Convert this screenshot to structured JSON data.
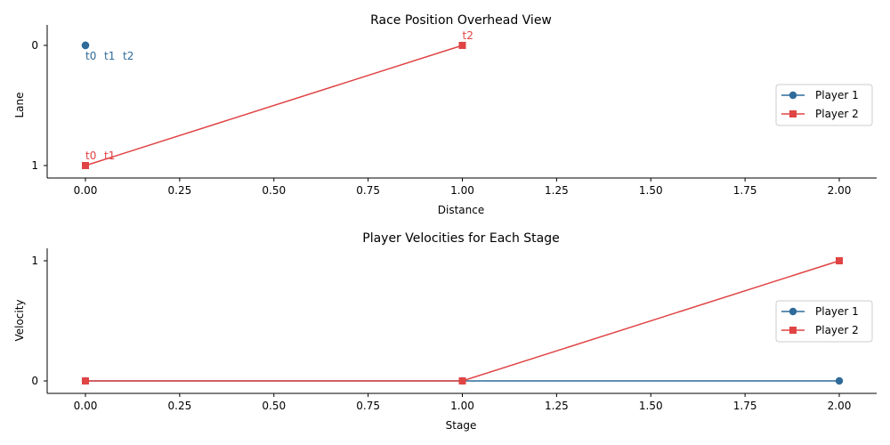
{
  "colors": {
    "player1": "#2f6b9a",
    "player2": "#e04444"
  },
  "chart_data": [
    {
      "type": "line",
      "title": "Race Position Overhead View",
      "xlabel": "Distance",
      "ylabel": "Lane",
      "xlim": [
        -0.1,
        2.1
      ],
      "ylim": [
        1.1,
        -0.1
      ],
      "y_inverted": true,
      "xticks": [
        "0.00",
        "0.25",
        "0.50",
        "0.75",
        "1.00",
        "1.25",
        "1.50",
        "1.75",
        "2.00"
      ],
      "xtick_values": [
        0,
        0.25,
        0.5,
        0.75,
        1.0,
        1.25,
        1.5,
        1.75,
        2.0
      ],
      "yticks": [
        "0",
        "1"
      ],
      "ytick_values": [
        0,
        1
      ],
      "grid": false,
      "legend_position": "center-right",
      "series": [
        {
          "name": "Player 1",
          "marker": "circle",
          "color": "#2f6b9a",
          "x": [
            0,
            0,
            0
          ],
          "y": [
            0,
            0,
            0
          ]
        },
        {
          "name": "Player 2",
          "marker": "square",
          "color": "#e04444",
          "x": [
            0,
            0,
            1
          ],
          "y": [
            1,
            1,
            0
          ]
        }
      ],
      "annotations": [
        {
          "text": "t0",
          "series": "Player 1",
          "x": 0,
          "y": 0
        },
        {
          "text": "t1",
          "series": "Player 1",
          "x": 0,
          "y": 0
        },
        {
          "text": "t2",
          "series": "Player 1",
          "x": 0,
          "y": 0
        },
        {
          "text": "t0",
          "series": "Player 2",
          "x": 0,
          "y": 1
        },
        {
          "text": "t1",
          "series": "Player 2",
          "x": 0,
          "y": 1
        },
        {
          "text": "t2",
          "series": "Player 2",
          "x": 1,
          "y": 0
        }
      ]
    },
    {
      "type": "line",
      "title": "Player Velocities for Each Stage",
      "xlabel": "Stage",
      "ylabel": "Velocity",
      "xlim": [
        -0.1,
        2.1
      ],
      "ylim": [
        -0.1,
        1.1
      ],
      "xticks": [
        "0.00",
        "0.25",
        "0.50",
        "0.75",
        "1.00",
        "1.25",
        "1.50",
        "1.75",
        "2.00"
      ],
      "xtick_values": [
        0,
        0.25,
        0.5,
        0.75,
        1.0,
        1.25,
        1.5,
        1.75,
        2.0
      ],
      "yticks": [
        "0",
        "1"
      ],
      "ytick_values": [
        0,
        1
      ],
      "grid": false,
      "legend_position": "center-right",
      "series": [
        {
          "name": "Player 1",
          "marker": "circle",
          "color": "#2f6b9a",
          "x": [
            0,
            1,
            2
          ],
          "y": [
            0,
            0,
            0
          ]
        },
        {
          "name": "Player 2",
          "marker": "square",
          "color": "#e04444",
          "x": [
            0,
            1,
            2
          ],
          "y": [
            0,
            0,
            1
          ]
        }
      ],
      "annotations": []
    }
  ]
}
